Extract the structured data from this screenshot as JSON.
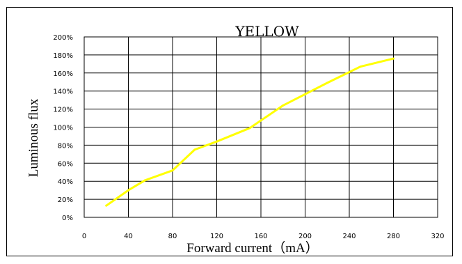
{
  "chart_data": {
    "type": "line",
    "title": "YELLOW",
    "xlabel": "Forward current（mA）",
    "ylabel": "Luminous flux",
    "xlim": [
      0,
      320
    ],
    "ylim": [
      0,
      200
    ],
    "x_ticks": [
      "0",
      "40",
      "80",
      "120",
      "160",
      "200",
      "240",
      "280",
      "320"
    ],
    "y_ticks": [
      "0%",
      "20%",
      "40%",
      "60%",
      "80%",
      "100%",
      "120%",
      "140%",
      "160%",
      "180%",
      "200%"
    ],
    "grid": true,
    "legend": "none",
    "series": [
      {
        "color": "#ffff00",
        "x": [
          20,
          40,
          55,
          80,
          100,
          120,
          150,
          180,
          220,
          240,
          250,
          280
        ],
        "y": [
          13,
          30,
          41,
          52,
          75,
          84,
          99,
          124,
          149,
          161,
          167,
          176
        ]
      }
    ]
  }
}
